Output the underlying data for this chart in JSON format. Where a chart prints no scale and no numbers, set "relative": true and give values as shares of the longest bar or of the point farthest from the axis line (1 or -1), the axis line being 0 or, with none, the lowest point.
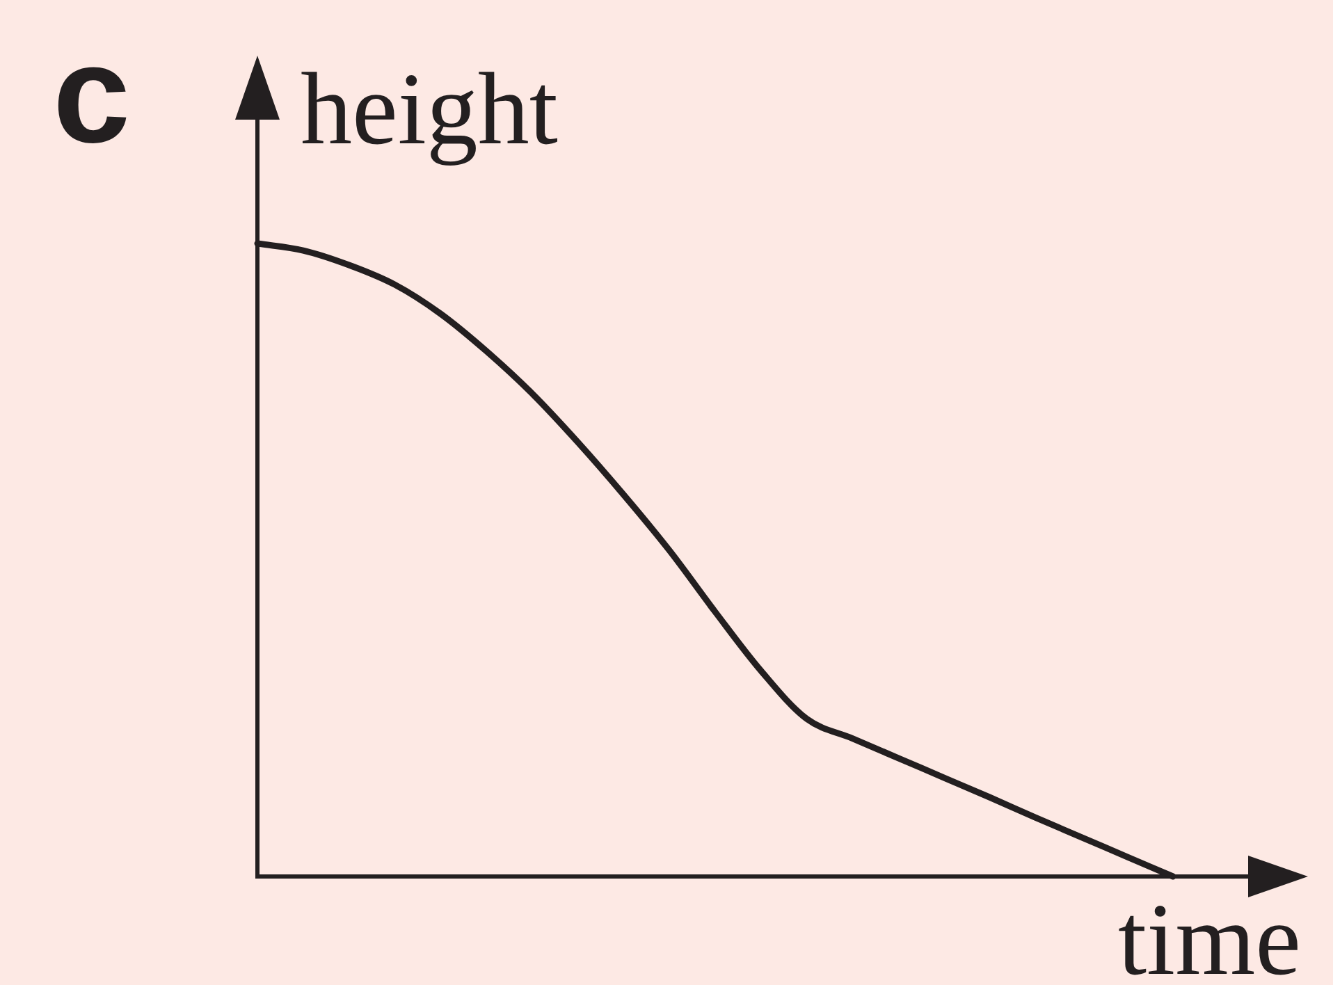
{
  "chart_data": {
    "type": "line",
    "relative": true,
    "xlabel": "time",
    "ylabel": "height",
    "annotations": [
      "c"
    ],
    "categories": [
      null,
      null,
      null,
      null,
      null,
      null,
      null,
      null,
      null,
      null,
      null,
      null,
      null,
      null,
      null,
      null,
      null,
      null,
      null,
      null,
      null
    ],
    "values": [
      1,
      0.989,
      0.966,
      0.935,
      0.889,
      0.83,
      0.763,
      0.686,
      0.603,
      0.515,
      0.418,
      0.325,
      0.249,
      0.218,
      0.187,
      0.156,
      0.125,
      0.093,
      0.062,
      0.031,
      0
    ],
    "color": "#231f20",
    "marker": "none",
    "line_style": "solid"
  }
}
